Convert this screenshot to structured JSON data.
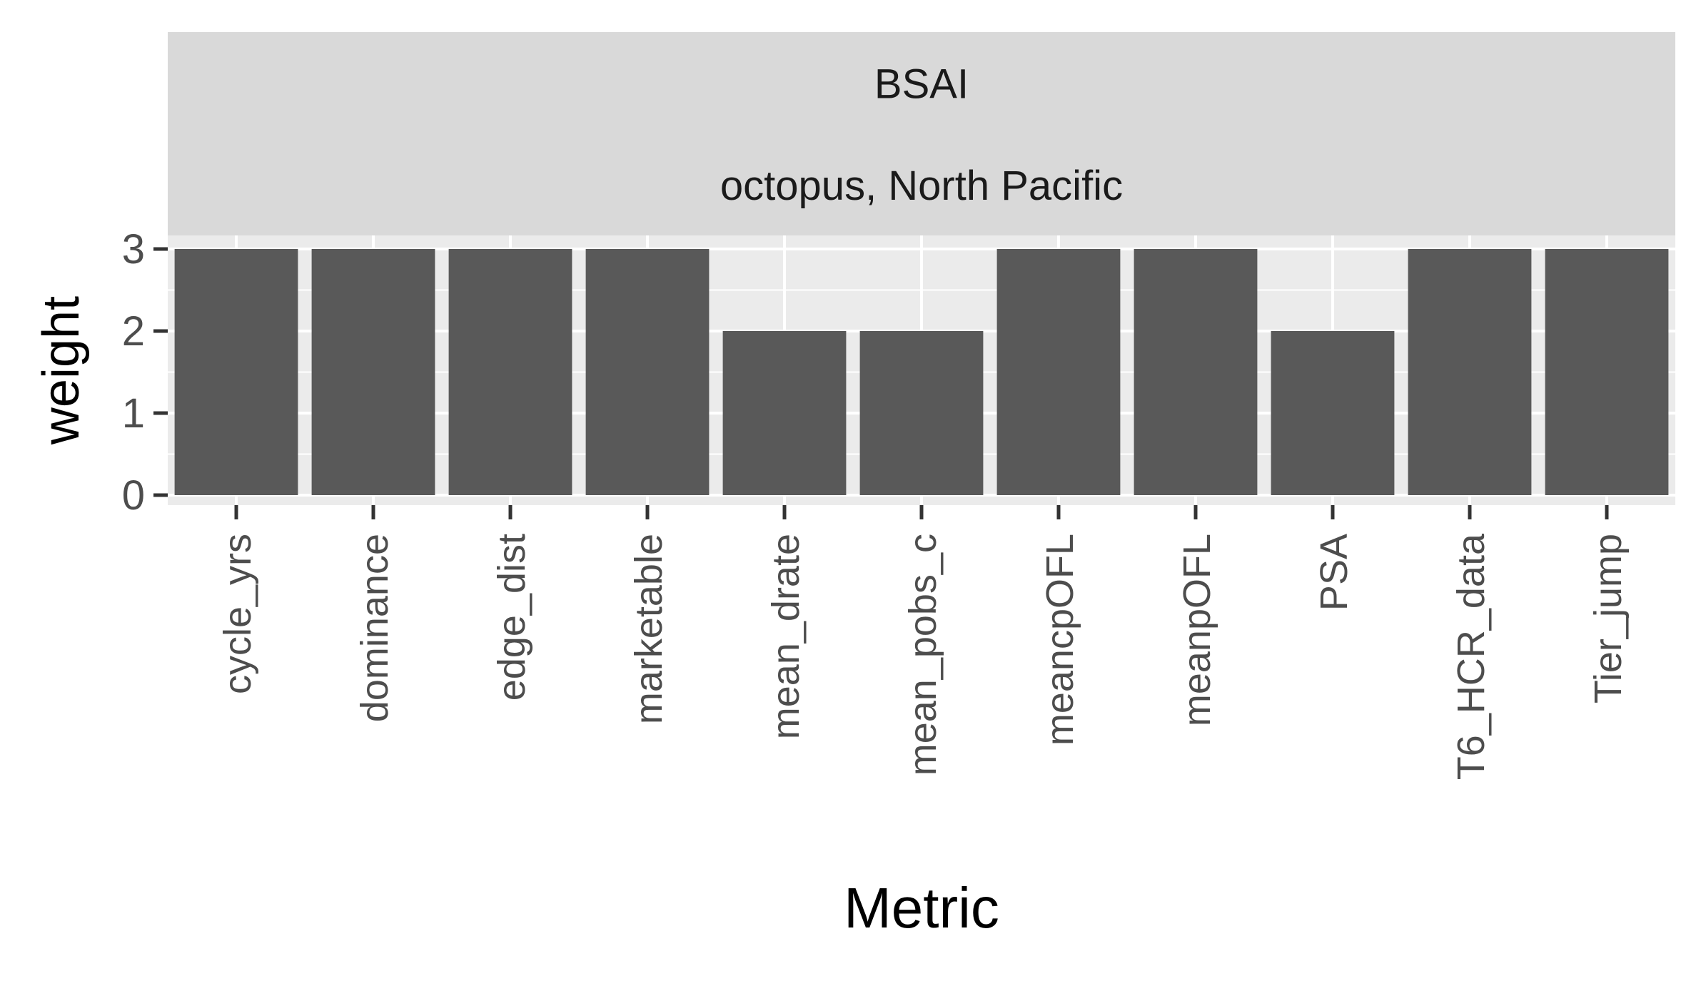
{
  "chart_data": {
    "type": "bar",
    "facet_strips": [
      "BSAI",
      "octopus, North Pacific"
    ],
    "categories": [
      "cycle_yrs",
      "dominance",
      "edge_dist",
      "marketable",
      "mean_drate",
      "mean_pobs_c",
      "meancpOFL",
      "meanpOFL",
      "PSA",
      "T6_HCR_data",
      "Tier_jump"
    ],
    "values": [
      3,
      3,
      3,
      3,
      2,
      2,
      3,
      3,
      2,
      3,
      3
    ],
    "title": "",
    "xlabel": "Metric",
    "ylabel": "weight",
    "ylim": [
      0,
      3.1
    ],
    "yticks": [
      0,
      1,
      2,
      3
    ],
    "grid": true,
    "legend": "none"
  },
  "colors": {
    "panel_background": "#ebebeb",
    "strip_background": "#d9d9d9",
    "grid_line": "#ffffff",
    "bar_fill": "#595959",
    "tick_text": "#4d4d4d",
    "title_text": "#000000",
    "strip_text": "#1a1a1a"
  }
}
